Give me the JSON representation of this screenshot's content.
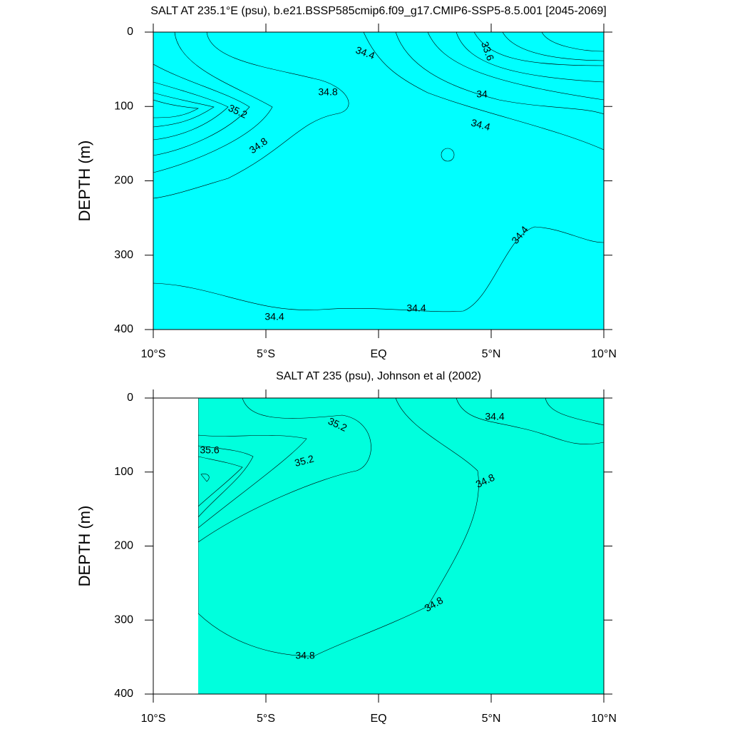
{
  "chart_data": [
    {
      "type": "contour",
      "title": "SALT AT 235.1°E (psu), b.e21.BSSP585cmip6.f09_g17.CMIP6-SSP5-8.5.001 [2045-2069]",
      "y_label": "DEPTH (m)",
      "xlim": [
        -10,
        10
      ],
      "xticks": [
        {
          "value": -10,
          "label": "10°S"
        },
        {
          "value": -5,
          "label": "5°S"
        },
        {
          "value": 0,
          "label": "EQ"
        },
        {
          "value": 5,
          "label": "5°N"
        },
        {
          "value": 10,
          "label": "10°N"
        }
      ],
      "ylim": [
        0,
        400
      ],
      "yticks": [
        0,
        100,
        200,
        300,
        400
      ],
      "y_reversed": true,
      "contour_labels": [
        34.4,
        33.6,
        34.8,
        34,
        35.2,
        34.4,
        34.8,
        34.4,
        34.4,
        34.4
      ]
    },
    {
      "type": "contour",
      "title": "SALT AT 235 (psu), Johnson et al (2002)",
      "y_label": "DEPTH (m)",
      "xlim": [
        -10,
        10
      ],
      "xticks": [
        {
          "value": -10,
          "label": "10°S"
        },
        {
          "value": -5,
          "label": "5°S"
        },
        {
          "value": 0,
          "label": "EQ"
        },
        {
          "value": 5,
          "label": "5°N"
        },
        {
          "value": 10,
          "label": "10°N"
        }
      ],
      "ylim": [
        0,
        400
      ],
      "yticks": [
        0,
        100,
        200,
        300,
        400
      ],
      "y_reversed": true,
      "contour_labels": [
        34.4,
        35.2,
        35.6,
        35.2,
        34.8,
        34.8,
        34.8
      ]
    }
  ]
}
